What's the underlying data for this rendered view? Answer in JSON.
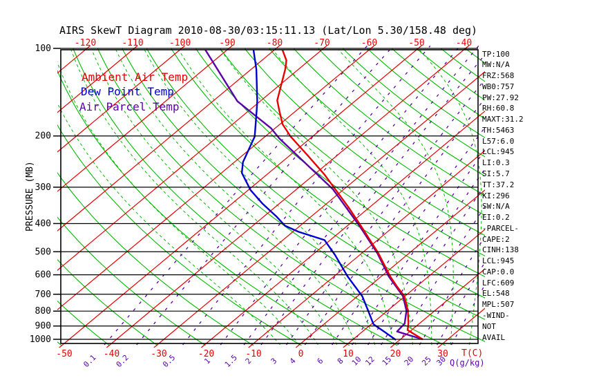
{
  "title": "AIRS SkewT Diagram 2010-08-30/03:15:11.13 (Lat/Lon 5.30/158.48 deg)",
  "legend": {
    "ambient_label": "Ambient Air Temp",
    "dew_label": "Dew Point Temp",
    "parcel_label": "Air Parcel Temp"
  },
  "colors": {
    "ambient": "#e60000",
    "dew": "#0000cc",
    "parcel": "#5a00a8",
    "isotherm": "#e60000",
    "dry_adiabat": "#00bb00",
    "moist_adiabat": "#00bb00",
    "mixing_ratio": "#5a00a8",
    "axis": "#000000"
  },
  "annotations": [
    "TP:100",
    "MW:N/A",
    "FRZ:568",
    "WB0:757",
    "PW:27.92",
    "RH:60.8",
    "MAXT:31.2",
    "TH:5463",
    "L57:6.0",
    "LCL:945",
    "LI:0.3",
    "SI:5.7",
    "TT:37.2",
    "KI:296",
    "SW:N/A",
    "EI:0.2",
    "-PARCEL-",
    "CAPE:2",
    "CINH:138",
    "LCL:945",
    "CAP:0.0",
    "LFC:609",
    "EL:548",
    "MPL:507",
    "-WIND-",
    "NOT",
    "AVAIL"
  ],
  "chart_data": {
    "type": "line",
    "subtype": "skewt-log-p",
    "title": "AIRS SkewT Diagram 2010-08-30/03:15:11.13 (Lat/Lon 5.30/158.48 deg)",
    "pressure_axis": {
      "label": "PRESSURE (MB)",
      "ticks": [
        100,
        200,
        300,
        400,
        500,
        600,
        700,
        800,
        900,
        1000
      ],
      "range_mb": [
        100,
        1050
      ],
      "scale": "log"
    },
    "temp_axis": {
      "unit_label": "T(C)",
      "bottom_tick_labels": [
        "-50",
        "-40",
        "-30",
        "-20",
        "-10",
        "0",
        "10",
        "20",
        "30"
      ],
      "bottom_tick_values": [
        -50,
        -40,
        -30,
        -20,
        -10,
        0,
        10,
        20,
        30
      ],
      "top_tick_labels": [
        "-120",
        "-110",
        "-100",
        "-90",
        "-80",
        "-70",
        "-60",
        "-50",
        "-40"
      ],
      "top_tick_values": [
        -120,
        -110,
        -100,
        -90,
        -80,
        -70,
        -60,
        -50,
        -40
      ]
    },
    "mixing_ratio": {
      "unit_label": "Q(g/kg)",
      "values": [
        0.1,
        0.2,
        0.5,
        1,
        1.5,
        2,
        3,
        4,
        6,
        8,
        10,
        12,
        15,
        20,
        25,
        30
      ],
      "labels": [
        "0.1",
        "0.2",
        "0.5",
        "1",
        "1.5",
        "2",
        "3",
        "4",
        "6",
        "8",
        "10",
        "12",
        "15",
        "20",
        "25",
        "30"
      ]
    },
    "background_lines": {
      "isotherms_c": {
        "min": -130,
        "max": 40,
        "step": 10
      },
      "dry_adiabats_k": {
        "min": 220,
        "max": 460,
        "step": 10
      },
      "moist_adiabats_start_c": {
        "min": -4,
        "max": 40,
        "step": 4
      }
    },
    "series": [
      {
        "name": "Ambient Air Temp",
        "color": "#e60000",
        "style": "solid",
        "points_p_t": [
          [
            101,
            -78.4
          ],
          [
            110,
            -74.8
          ],
          [
            118,
            -72.8
          ],
          [
            151,
            -66.6
          ],
          [
            164,
            -63.5
          ],
          [
            182,
            -59.5
          ],
          [
            201,
            -54.6
          ],
          [
            233,
            -46.3
          ],
          [
            271,
            -37.9
          ],
          [
            305,
            -31.8
          ],
          [
            352,
            -24.4
          ],
          [
            410,
            -16.8
          ],
          [
            454,
            -11.8
          ],
          [
            507,
            -6.4
          ],
          [
            608,
            1.9
          ],
          [
            660,
            6.0
          ],
          [
            711,
            9.9
          ],
          [
            797,
            14.3
          ],
          [
            883,
            17.7
          ],
          [
            930,
            19.2
          ],
          [
            1000,
            24.7
          ]
        ]
      },
      {
        "name": "Dew Point Temp",
        "color": "#0000cc",
        "style": "solid",
        "points_p_t": [
          [
            101,
            -84.5
          ],
          [
            118,
            -78.9
          ],
          [
            152,
            -70.6
          ],
          [
            164,
            -68.3
          ],
          [
            201,
            -62.2
          ],
          [
            246,
            -58.2
          ],
          [
            268,
            -55.7
          ],
          [
            307,
            -49.5
          ],
          [
            342,
            -43.5
          ],
          [
            378,
            -37.4
          ],
          [
            407,
            -33.2
          ],
          [
            427,
            -28.8
          ],
          [
            456,
            -21.2
          ],
          [
            513,
            -15.2
          ],
          [
            608,
            -7.1
          ],
          [
            711,
            1.0
          ],
          [
            797,
            5.9
          ],
          [
            855,
            8.9
          ],
          [
            888,
            10.5
          ],
          [
            941,
            14.6
          ],
          [
            1005,
            19.2
          ]
        ]
      },
      {
        "name": "Air Parcel Temp",
        "color": "#5a00a8",
        "style": "solid",
        "points_p_t": [
          [
            101,
            -94.7
          ],
          [
            152,
            -74.8
          ],
          [
            188,
            -60.9
          ],
          [
            204,
            -56.5
          ],
          [
            305,
            -32.3
          ],
          [
            410,
            -17.1
          ],
          [
            507,
            -6.6
          ],
          [
            608,
            1.6
          ],
          [
            711,
            9.6
          ],
          [
            797,
            14.0
          ],
          [
            883,
            16.9
          ],
          [
            940,
            17.3
          ],
          [
            1000,
            24.7
          ]
        ]
      }
    ]
  }
}
